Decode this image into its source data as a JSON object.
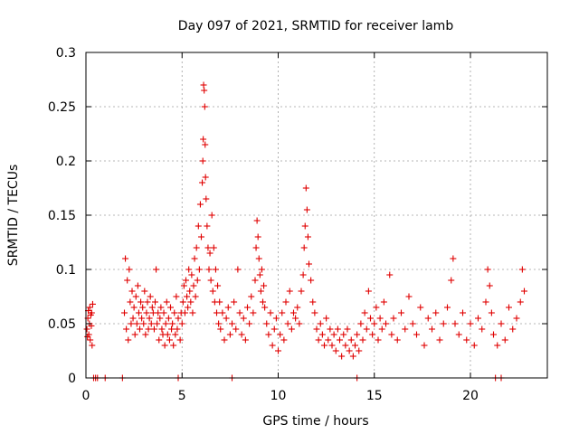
{
  "chart_data": {
    "type": "scatter",
    "title": "Day 097 of 2021, SRMTID for receiver lamb",
    "xlabel": "GPS time / hours",
    "ylabel": "SRMTID / TECUs",
    "xlim": [
      0,
      24
    ],
    "ylim": [
      0,
      0.3
    ],
    "x_ticks": [
      0,
      5,
      10,
      15,
      20
    ],
    "y_ticks": [
      0,
      0.05,
      0.1,
      0.15,
      0.2,
      0.25,
      0.3
    ],
    "x_tick_labels": [
      "0",
      "5",
      "10",
      "15",
      "20"
    ],
    "y_tick_labels": [
      "0",
      "0.05",
      "0.1",
      "0.15",
      "0.2",
      "0.25",
      "0.3"
    ],
    "grid": true,
    "marker": "plus",
    "color": "#e00000",
    "series": [
      {
        "name": "SRMTID",
        "points": [
          [
            0.05,
            0.045
          ],
          [
            0.08,
            0.038
          ],
          [
            0.1,
            0.055
          ],
          [
            0.12,
            0.062
          ],
          [
            0.15,
            0.04
          ],
          [
            0.18,
            0.05
          ],
          [
            0.2,
            0.065
          ],
          [
            0.22,
            0.035
          ],
          [
            0.25,
            0.058
          ],
          [
            0.28,
            0.048
          ],
          [
            0.3,
            0.06
          ],
          [
            0.32,
            0.03
          ],
          [
            0.35,
            0.068
          ],
          [
            0.4,
            0.0
          ],
          [
            0.5,
            0.0
          ],
          [
            0.6,
            0.0
          ],
          [
            1.0,
            0.0
          ],
          [
            1.9,
            0.0
          ],
          [
            4.8,
            0.0
          ],
          [
            7.6,
            0.0
          ],
          [
            14.1,
            0.0
          ],
          [
            21.3,
            0.0
          ],
          [
            21.6,
            0.0
          ],
          [
            2.0,
            0.06
          ],
          [
            2.05,
            0.11
          ],
          [
            2.1,
            0.045
          ],
          [
            2.15,
            0.09
          ],
          [
            2.2,
            0.035
          ],
          [
            2.25,
            0.1
          ],
          [
            2.3,
            0.07
          ],
          [
            2.35,
            0.05
          ],
          [
            2.4,
            0.08
          ],
          [
            2.45,
            0.055
          ],
          [
            2.5,
            0.065
          ],
          [
            2.55,
            0.04
          ],
          [
            2.6,
            0.075
          ],
          [
            2.65,
            0.05
          ],
          [
            2.7,
            0.085
          ],
          [
            2.75,
            0.06
          ],
          [
            2.8,
            0.045
          ],
          [
            2.85,
            0.07
          ],
          [
            2.9,
            0.055
          ],
          [
            2.95,
            0.065
          ],
          [
            3.0,
            0.05
          ],
          [
            3.05,
            0.08
          ],
          [
            3.1,
            0.04
          ],
          [
            3.15,
            0.06
          ],
          [
            3.2,
            0.07
          ],
          [
            3.25,
            0.045
          ],
          [
            3.3,
            0.055
          ],
          [
            3.35,
            0.075
          ],
          [
            3.4,
            0.05
          ],
          [
            3.45,
            0.065
          ],
          [
            3.5,
            0.06
          ],
          [
            3.55,
            0.045
          ],
          [
            3.6,
            0.07
          ],
          [
            3.65,
            0.1
          ],
          [
            3.7,
            0.05
          ],
          [
            3.75,
            0.06
          ],
          [
            3.8,
            0.035
          ],
          [
            3.85,
            0.055
          ],
          [
            3.9,
            0.065
          ],
          [
            3.95,
            0.045
          ],
          [
            4.0,
            0.04
          ],
          [
            4.05,
            0.06
          ],
          [
            4.1,
            0.03
          ],
          [
            4.15,
            0.05
          ],
          [
            4.2,
            0.07
          ],
          [
            4.25,
            0.04
          ],
          [
            4.3,
            0.055
          ],
          [
            4.35,
            0.035
          ],
          [
            4.4,
            0.065
          ],
          [
            4.45,
            0.045
          ],
          [
            4.5,
            0.05
          ],
          [
            4.55,
            0.03
          ],
          [
            4.6,
            0.06
          ],
          [
            4.65,
            0.04
          ],
          [
            4.7,
            0.075
          ],
          [
            4.75,
            0.045
          ],
          [
            4.8,
            0.055
          ],
          [
            4.9,
            0.035
          ],
          [
            4.95,
            0.06
          ],
          [
            5.0,
            0.05
          ],
          [
            5.05,
            0.07
          ],
          [
            5.1,
            0.085
          ],
          [
            5.15,
            0.06
          ],
          [
            5.2,
            0.09
          ],
          [
            5.25,
            0.075
          ],
          [
            5.3,
            0.065
          ],
          [
            5.35,
            0.1
          ],
          [
            5.4,
            0.08
          ],
          [
            5.45,
            0.07
          ],
          [
            5.5,
            0.095
          ],
          [
            5.55,
            0.06
          ],
          [
            5.6,
            0.085
          ],
          [
            5.65,
            0.11
          ],
          [
            5.7,
            0.075
          ],
          [
            5.75,
            0.12
          ],
          [
            5.8,
            0.09
          ],
          [
            5.85,
            0.14
          ],
          [
            5.9,
            0.1
          ],
          [
            5.95,
            0.16
          ],
          [
            6.0,
            0.13
          ],
          [
            6.05,
            0.18
          ],
          [
            6.08,
            0.2
          ],
          [
            6.1,
            0.22
          ],
          [
            6.12,
            0.27
          ],
          [
            6.15,
            0.265
          ],
          [
            6.18,
            0.25
          ],
          [
            6.2,
            0.215
          ],
          [
            6.22,
            0.185
          ],
          [
            6.25,
            0.165
          ],
          [
            6.3,
            0.14
          ],
          [
            6.35,
            0.12
          ],
          [
            6.4,
            0.1
          ],
          [
            6.45,
            0.115
          ],
          [
            6.5,
            0.09
          ],
          [
            6.55,
            0.15
          ],
          [
            6.6,
            0.08
          ],
          [
            6.65,
            0.12
          ],
          [
            6.7,
            0.07
          ],
          [
            6.75,
            0.1
          ],
          [
            6.8,
            0.06
          ],
          [
            6.85,
            0.085
          ],
          [
            6.9,
            0.05
          ],
          [
            6.95,
            0.07
          ],
          [
            7.0,
            0.045
          ],
          [
            7.1,
            0.06
          ],
          [
            7.2,
            0.035
          ],
          [
            7.3,
            0.055
          ],
          [
            7.4,
            0.065
          ],
          [
            7.5,
            0.04
          ],
          [
            7.6,
            0.05
          ],
          [
            7.7,
            0.07
          ],
          [
            7.8,
            0.045
          ],
          [
            7.9,
            0.1
          ],
          [
            8.0,
            0.06
          ],
          [
            8.1,
            0.04
          ],
          [
            8.2,
            0.055
          ],
          [
            8.3,
            0.035
          ],
          [
            8.4,
            0.065
          ],
          [
            8.5,
            0.05
          ],
          [
            8.6,
            0.075
          ],
          [
            8.7,
            0.06
          ],
          [
            8.8,
            0.09
          ],
          [
            8.85,
            0.12
          ],
          [
            8.9,
            0.145
          ],
          [
            8.95,
            0.13
          ],
          [
            9.0,
            0.11
          ],
          [
            9.05,
            0.095
          ],
          [
            9.1,
            0.08
          ],
          [
            9.15,
            0.1
          ],
          [
            9.2,
            0.07
          ],
          [
            9.25,
            0.085
          ],
          [
            9.3,
            0.065
          ],
          [
            9.4,
            0.05
          ],
          [
            9.5,
            0.04
          ],
          [
            9.6,
            0.06
          ],
          [
            9.7,
            0.03
          ],
          [
            9.8,
            0.045
          ],
          [
            9.9,
            0.055
          ],
          [
            10.0,
            0.025
          ],
          [
            10.1,
            0.04
          ],
          [
            10.2,
            0.06
          ],
          [
            10.3,
            0.035
          ],
          [
            10.4,
            0.07
          ],
          [
            10.5,
            0.05
          ],
          [
            10.6,
            0.08
          ],
          [
            10.7,
            0.045
          ],
          [
            10.8,
            0.06
          ],
          [
            10.9,
            0.055
          ],
          [
            11.0,
            0.065
          ],
          [
            11.1,
            0.05
          ],
          [
            11.2,
            0.08
          ],
          [
            11.3,
            0.095
          ],
          [
            11.35,
            0.12
          ],
          [
            11.4,
            0.14
          ],
          [
            11.45,
            0.175
          ],
          [
            11.5,
            0.155
          ],
          [
            11.55,
            0.13
          ],
          [
            11.6,
            0.105
          ],
          [
            11.7,
            0.09
          ],
          [
            11.8,
            0.07
          ],
          [
            11.9,
            0.06
          ],
          [
            12.0,
            0.045
          ],
          [
            12.1,
            0.035
          ],
          [
            12.2,
            0.05
          ],
          [
            12.3,
            0.04
          ],
          [
            12.4,
            0.03
          ],
          [
            12.5,
            0.055
          ],
          [
            12.6,
            0.035
          ],
          [
            12.7,
            0.045
          ],
          [
            12.8,
            0.03
          ],
          [
            12.9,
            0.04
          ],
          [
            13.0,
            0.025
          ],
          [
            13.1,
            0.045
          ],
          [
            13.2,
            0.035
          ],
          [
            13.3,
            0.02
          ],
          [
            13.4,
            0.04
          ],
          [
            13.5,
            0.03
          ],
          [
            13.6,
            0.045
          ],
          [
            13.7,
            0.025
          ],
          [
            13.8,
            0.035
          ],
          [
            13.9,
            0.02
          ],
          [
            14.0,
            0.03
          ],
          [
            14.1,
            0.04
          ],
          [
            14.2,
            0.025
          ],
          [
            14.3,
            0.05
          ],
          [
            14.4,
            0.035
          ],
          [
            14.5,
            0.06
          ],
          [
            14.6,
            0.045
          ],
          [
            14.7,
            0.08
          ],
          [
            14.8,
            0.055
          ],
          [
            14.9,
            0.04
          ],
          [
            15.0,
            0.05
          ],
          [
            15.1,
            0.065
          ],
          [
            15.2,
            0.035
          ],
          [
            15.3,
            0.055
          ],
          [
            15.4,
            0.045
          ],
          [
            15.5,
            0.07
          ],
          [
            15.6,
            0.05
          ],
          [
            15.8,
            0.095
          ],
          [
            15.9,
            0.04
          ],
          [
            16.0,
            0.055
          ],
          [
            16.2,
            0.035
          ],
          [
            16.4,
            0.06
          ],
          [
            16.6,
            0.045
          ],
          [
            16.8,
            0.075
          ],
          [
            17.0,
            0.05
          ],
          [
            17.2,
            0.04
          ],
          [
            17.4,
            0.065
          ],
          [
            17.6,
            0.03
          ],
          [
            17.8,
            0.055
          ],
          [
            18.0,
            0.045
          ],
          [
            18.2,
            0.06
          ],
          [
            18.4,
            0.035
          ],
          [
            18.6,
            0.05
          ],
          [
            18.8,
            0.065
          ],
          [
            19.0,
            0.09
          ],
          [
            19.1,
            0.11
          ],
          [
            19.2,
            0.05
          ],
          [
            19.4,
            0.04
          ],
          [
            19.6,
            0.06
          ],
          [
            19.8,
            0.035
          ],
          [
            20.0,
            0.05
          ],
          [
            20.2,
            0.03
          ],
          [
            20.4,
            0.055
          ],
          [
            20.6,
            0.045
          ],
          [
            20.8,
            0.07
          ],
          [
            20.9,
            0.1
          ],
          [
            21.0,
            0.085
          ],
          [
            21.1,
            0.06
          ],
          [
            21.2,
            0.04
          ],
          [
            21.4,
            0.03
          ],
          [
            21.6,
            0.05
          ],
          [
            21.8,
            0.035
          ],
          [
            22.0,
            0.065
          ],
          [
            22.2,
            0.045
          ],
          [
            22.4,
            0.055
          ],
          [
            22.6,
            0.07
          ],
          [
            22.7,
            0.1
          ],
          [
            22.8,
            0.08
          ]
        ]
      }
    ]
  }
}
